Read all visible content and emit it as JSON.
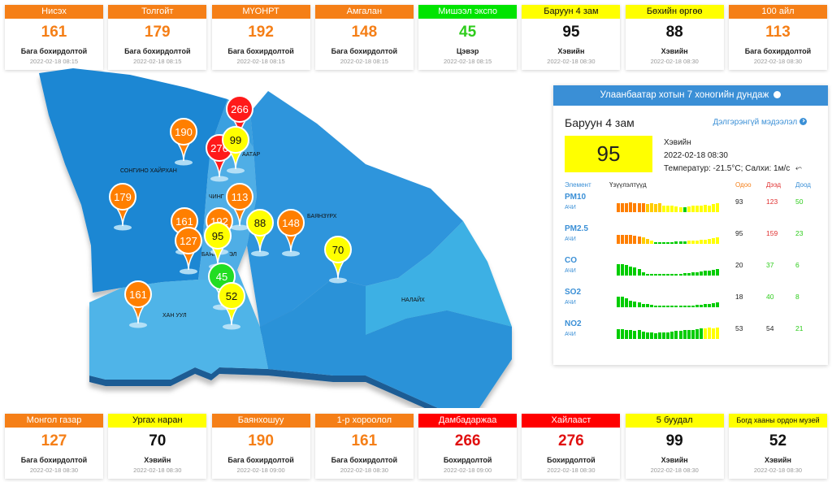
{
  "top_cards": [
    {
      "name": "Нисэх",
      "value": "161",
      "status": "Бага бохирдолтой",
      "time": "2022-02-18 08:15",
      "header_color": "#f57f17",
      "value_color": "#f57f17"
    },
    {
      "name": "Толгойт",
      "value": "179",
      "status": "Бага бохирдолтой",
      "time": "2022-02-18 08:15",
      "header_color": "#f57f17",
      "value_color": "#f57f17"
    },
    {
      "name": "МҮОНРТ",
      "value": "192",
      "status": "Бага бохирдолтой",
      "time": "2022-02-18 08:15",
      "header_color": "#f57f17",
      "value_color": "#f57f17"
    },
    {
      "name": "Амгалан",
      "value": "148",
      "status": "Бага бохирдолтой",
      "time": "2022-02-18 08:15",
      "header_color": "#f57f17",
      "value_color": "#f57f17"
    },
    {
      "name": "Мишээл экспо",
      "value": "45",
      "status": "Цэвэр",
      "time": "2022-02-18 08:15",
      "header_color": "#00e400",
      "value_color": "#2ecc1c"
    },
    {
      "name": "Баруун 4 зам",
      "value": "95",
      "status": "Хэвийн",
      "time": "2022-02-18 08:30",
      "header_color": "#ffff00",
      "value_color": "#111111"
    },
    {
      "name": "Бөхийн өргөө",
      "value": "88",
      "status": "Хэвийн",
      "time": "2022-02-18 08:30",
      "header_color": "#ffff00",
      "value_color": "#111111"
    },
    {
      "name": "100 айл",
      "value": "113",
      "status": "Бага бохирдолтой",
      "time": "2022-02-18 08:30",
      "header_color": "#f57f17",
      "value_color": "#f57f17"
    }
  ],
  "bottom_cards": [
    {
      "name": "Монгол газар",
      "value": "127",
      "status": "Бага бохирдолтой",
      "time": "2022-02-18 08:30",
      "header_color": "#f57f17",
      "value_color": "#f57f17"
    },
    {
      "name": "Ургах наран",
      "value": "70",
      "status": "Хэвийн",
      "time": "2022-02-18 08:30",
      "header_color": "#ffff00",
      "value_color": "#111111"
    },
    {
      "name": "Баянхошуу",
      "value": "190",
      "status": "Бага бохирдолтой",
      "time": "2022-02-18 09:00",
      "header_color": "#f57f17",
      "value_color": "#f57f17"
    },
    {
      "name": "1-р хороолол",
      "value": "161",
      "status": "Бага бохирдолтой",
      "time": "2022-02-18 08:30",
      "header_color": "#f57f17",
      "value_color": "#f57f17"
    },
    {
      "name": "Дамбадаржаа",
      "value": "266",
      "status": "Бохирдолтой",
      "time": "2022-02-18 09:00",
      "header_color": "#ff0000",
      "value_color": "#e01010"
    },
    {
      "name": "Хайлааст",
      "value": "276",
      "status": "Бохирдолтой",
      "time": "2022-02-18 08:30",
      "header_color": "#ff0000",
      "value_color": "#e01010"
    },
    {
      "name": "5 буудал",
      "value": "99",
      "status": "Хэвийн",
      "time": "2022-02-18 08:30",
      "header_color": "#ffff00",
      "value_color": "#111111"
    },
    {
      "name": "Богд хааны ордон музей",
      "value": "52",
      "status": "Хэвийн",
      "time": "2022-02-18 08:30",
      "header_color": "#ffff00",
      "value_color": "#111111"
    }
  ],
  "map": {
    "districts": [
      "СОНГИНО ХАЙРХАН",
      "ХАН УУЛ",
      "БАЯНЗҮРХ",
      "НАЛАЙХ",
      "ЧИНГ",
      "БАЯН",
      "ААТАР",
      "ЭЛ"
    ],
    "markers": [
      {
        "value": "266",
        "color": "#ff1a1a"
      },
      {
        "value": "190",
        "color": "#ff7f00"
      },
      {
        "value": "276",
        "color": "#ff1a1a"
      },
      {
        "value": "99",
        "color": "#ffff00"
      },
      {
        "value": "179",
        "color": "#ff7f00"
      },
      {
        "value": "113",
        "color": "#ff7f00"
      },
      {
        "value": "161",
        "color": "#ff7f00"
      },
      {
        "value": "192",
        "color": "#ff7f00"
      },
      {
        "value": "88",
        "color": "#ffff00"
      },
      {
        "value": "148",
        "color": "#ff7f00"
      },
      {
        "value": "127",
        "color": "#ff7f00"
      },
      {
        "value": "95",
        "color": "#ffff00"
      },
      {
        "value": "70",
        "color": "#ffff00"
      },
      {
        "value": "45",
        "color": "#22dd22"
      },
      {
        "value": "161",
        "color": "#ff7f00"
      },
      {
        "value": "52",
        "color": "#ffff00"
      }
    ]
  },
  "panel": {
    "title": "Улаанбаатар хотын 7 хоногийн дундаж",
    "station": "Баруун 4 зам",
    "more_link": "Дэлгэрэнгүй мэдээлэл",
    "aqi": "95",
    "aqi_color": "#ffff00",
    "status": "Хэвийн",
    "time": "2022-02-18 08:30",
    "weather": "Температур: -21.5°C; Салхи: 1м/с",
    "headers": {
      "element": "Элемент",
      "indicators": "Үзүүлэлтүүд",
      "now": "Одоо",
      "max": "Дээд",
      "min": "Доод"
    },
    "pollutants": [
      {
        "name": "PM10",
        "unit": "АЧИ",
        "now": "93",
        "max": "123",
        "min": "50",
        "bars": [
          {
            "v": 0.75,
            "c": "#ff7f00"
          },
          {
            "v": 0.8,
            "c": "#ff7f00"
          },
          {
            "v": 0.75,
            "c": "#ff7f00"
          },
          {
            "v": 0.85,
            "c": "#ff7f00"
          },
          {
            "v": 0.8,
            "c": "#ff7f00"
          },
          {
            "v": 0.75,
            "c": "#ff7f00"
          },
          {
            "v": 0.8,
            "c": "#ff7f00"
          },
          {
            "v": 0.7,
            "c": "#ffcc00"
          },
          {
            "v": 0.75,
            "c": "#ffcc00"
          },
          {
            "v": 0.7,
            "c": "#ffcc00"
          },
          {
            "v": 0.75,
            "c": "#ffcc00"
          },
          {
            "v": 0.55,
            "c": "#ffff00"
          },
          {
            "v": 0.6,
            "c": "#ffff00"
          },
          {
            "v": 0.55,
            "c": "#ffff00"
          },
          {
            "v": 0.5,
            "c": "#ffff00"
          },
          {
            "v": 0.45,
            "c": "#ffff00"
          },
          {
            "v": 0.4,
            "c": "#00cc00"
          },
          {
            "v": 0.5,
            "c": "#ffff00"
          },
          {
            "v": 0.55,
            "c": "#ffff00"
          },
          {
            "v": 0.6,
            "c": "#ffff00"
          },
          {
            "v": 0.55,
            "c": "#ffff00"
          },
          {
            "v": 0.65,
            "c": "#ffff00"
          },
          {
            "v": 0.6,
            "c": "#ffff00"
          },
          {
            "v": 0.7,
            "c": "#ffff00"
          },
          {
            "v": 0.75,
            "c": "#ffff00"
          }
        ]
      },
      {
        "name": "PM2.5",
        "unit": "АЧИ",
        "now": "95",
        "max": "159",
        "min": "23",
        "bars": [
          {
            "v": 0.75,
            "c": "#ff7f00"
          },
          {
            "v": 0.8,
            "c": "#ff7f00"
          },
          {
            "v": 0.75,
            "c": "#ff7f00"
          },
          {
            "v": 0.8,
            "c": "#ff7f00"
          },
          {
            "v": 0.7,
            "c": "#ff7f00"
          },
          {
            "v": 0.65,
            "c": "#ff7f00"
          },
          {
            "v": 0.55,
            "c": "#ffcc00"
          },
          {
            "v": 0.45,
            "c": "#ffcc00"
          },
          {
            "v": 0.25,
            "c": "#ffff00"
          },
          {
            "v": 0.15,
            "c": "#00cc00"
          },
          {
            "v": 0.15,
            "c": "#00cc00"
          },
          {
            "v": 0.15,
            "c": "#00cc00"
          },
          {
            "v": 0.15,
            "c": "#00cc00"
          },
          {
            "v": 0.15,
            "c": "#00cc00"
          },
          {
            "v": 0.2,
            "c": "#00cc00"
          },
          {
            "v": 0.2,
            "c": "#00cc00"
          },
          {
            "v": 0.2,
            "c": "#00cc00"
          },
          {
            "v": 0.25,
            "c": "#ffff00"
          },
          {
            "v": 0.25,
            "c": "#ffff00"
          },
          {
            "v": 0.3,
            "c": "#ffff00"
          },
          {
            "v": 0.35,
            "c": "#ffff00"
          },
          {
            "v": 0.35,
            "c": "#ffff00"
          },
          {
            "v": 0.45,
            "c": "#ffff00"
          },
          {
            "v": 0.5,
            "c": "#ffff00"
          },
          {
            "v": 0.55,
            "c": "#ffff00"
          }
        ]
      },
      {
        "name": "CO",
        "unit": "АЧИ",
        "now": "20",
        "max": "37",
        "min": "6",
        "bars": [
          {
            "v": 1,
            "c": "#00cc00"
          },
          {
            "v": 1,
            "c": "#00cc00"
          },
          {
            "v": 0.9,
            "c": "#00cc00"
          },
          {
            "v": 0.8,
            "c": "#00cc00"
          },
          {
            "v": 0.7,
            "c": "#00cc00"
          },
          {
            "v": 0.55,
            "c": "#00cc00"
          },
          {
            "v": 0.25,
            "c": "#00cc00"
          },
          {
            "v": 0.15,
            "c": "#00cc00"
          },
          {
            "v": 0.15,
            "c": "#00cc00"
          },
          {
            "v": 0.15,
            "c": "#00cc00"
          },
          {
            "v": 0.15,
            "c": "#00cc00"
          },
          {
            "v": 0.15,
            "c": "#00cc00"
          },
          {
            "v": 0.15,
            "c": "#00cc00"
          },
          {
            "v": 0.15,
            "c": "#00cc00"
          },
          {
            "v": 0.15,
            "c": "#00cc00"
          },
          {
            "v": 0.15,
            "c": "#00cc00"
          },
          {
            "v": 0.2,
            "c": "#00cc00"
          },
          {
            "v": 0.2,
            "c": "#00cc00"
          },
          {
            "v": 0.25,
            "c": "#00cc00"
          },
          {
            "v": 0.3,
            "c": "#00cc00"
          },
          {
            "v": 0.35,
            "c": "#00cc00"
          },
          {
            "v": 0.4,
            "c": "#00cc00"
          },
          {
            "v": 0.45,
            "c": "#00cc00"
          },
          {
            "v": 0.5,
            "c": "#00cc00"
          },
          {
            "v": 0.55,
            "c": "#00cc00"
          }
        ]
      },
      {
        "name": "SO2",
        "unit": "АЧИ",
        "now": "18",
        "max": "40",
        "min": "8",
        "bars": [
          {
            "v": 0.95,
            "c": "#00cc00"
          },
          {
            "v": 0.9,
            "c": "#00cc00"
          },
          {
            "v": 0.8,
            "c": "#00cc00"
          },
          {
            "v": 0.6,
            "c": "#00cc00"
          },
          {
            "v": 0.5,
            "c": "#00cc00"
          },
          {
            "v": 0.45,
            "c": "#00cc00"
          },
          {
            "v": 0.3,
            "c": "#00cc00"
          },
          {
            "v": 0.25,
            "c": "#00cc00"
          },
          {
            "v": 0.2,
            "c": "#00cc00"
          },
          {
            "v": 0.15,
            "c": "#00cc00"
          },
          {
            "v": 0.15,
            "c": "#00cc00"
          },
          {
            "v": 0.15,
            "c": "#00cc00"
          },
          {
            "v": 0.15,
            "c": "#00cc00"
          },
          {
            "v": 0.15,
            "c": "#00cc00"
          },
          {
            "v": 0.15,
            "c": "#00cc00"
          },
          {
            "v": 0.15,
            "c": "#00cc00"
          },
          {
            "v": 0.15,
            "c": "#00cc00"
          },
          {
            "v": 0.15,
            "c": "#00cc00"
          },
          {
            "v": 0.15,
            "c": "#00cc00"
          },
          {
            "v": 0.2,
            "c": "#00cc00"
          },
          {
            "v": 0.2,
            "c": "#00cc00"
          },
          {
            "v": 0.25,
            "c": "#00cc00"
          },
          {
            "v": 0.3,
            "c": "#00cc00"
          },
          {
            "v": 0.35,
            "c": "#00cc00"
          },
          {
            "v": 0.4,
            "c": "#00cc00"
          }
        ]
      },
      {
        "name": "NO2",
        "unit": "АЧИ",
        "now": "53",
        "max": "54",
        "min": "21",
        "bars": [
          {
            "v": 0.85,
            "c": "#00cc00"
          },
          {
            "v": 0.85,
            "c": "#00cc00"
          },
          {
            "v": 0.8,
            "c": "#00cc00"
          },
          {
            "v": 0.75,
            "c": "#00cc00"
          },
          {
            "v": 0.7,
            "c": "#00cc00"
          },
          {
            "v": 0.75,
            "c": "#00cc00"
          },
          {
            "v": 0.65,
            "c": "#00cc00"
          },
          {
            "v": 0.6,
            "c": "#00cc00"
          },
          {
            "v": 0.55,
            "c": "#00cc00"
          },
          {
            "v": 0.5,
            "c": "#00cc00"
          },
          {
            "v": 0.55,
            "c": "#00cc00"
          },
          {
            "v": 0.6,
            "c": "#00cc00"
          },
          {
            "v": 0.6,
            "c": "#00cc00"
          },
          {
            "v": 0.65,
            "c": "#00cc00"
          },
          {
            "v": 0.7,
            "c": "#00cc00"
          },
          {
            "v": 0.7,
            "c": "#00cc00"
          },
          {
            "v": 0.75,
            "c": "#00cc00"
          },
          {
            "v": 0.8,
            "c": "#00cc00"
          },
          {
            "v": 0.8,
            "c": "#00cc00"
          },
          {
            "v": 0.85,
            "c": "#00cc00"
          },
          {
            "v": 0.9,
            "c": "#00cc00"
          },
          {
            "v": 0.95,
            "c": "#ffff00"
          },
          {
            "v": 1,
            "c": "#ffff00"
          },
          {
            "v": 0.95,
            "c": "#ffff00"
          },
          {
            "v": 1,
            "c": "#ffff00"
          }
        ]
      }
    ]
  }
}
